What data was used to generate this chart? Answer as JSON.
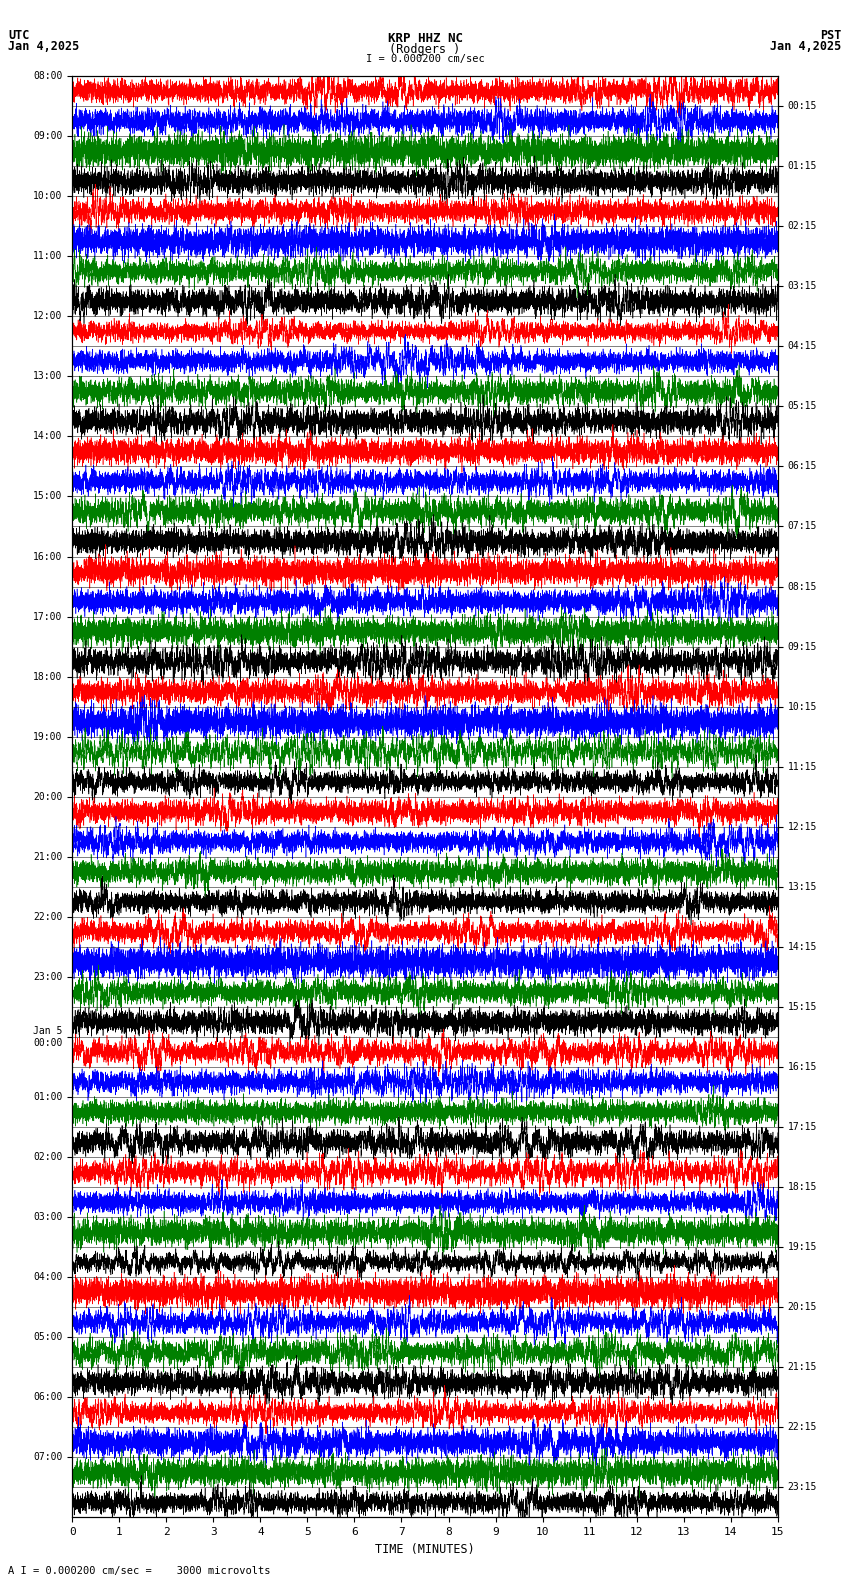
{
  "title_line1": "KRP HHZ NC",
  "title_line2": "(Rodgers )",
  "scale_label": "I = 0.000200 cm/sec",
  "left_timezone": "UTC",
  "right_timezone": "PST",
  "left_date": "Jan 4,2025",
  "right_date": "Jan 4,2025",
  "bottom_label": "A I = 0.000200 cm/sec =    3000 microvolts",
  "xlabel": "TIME (MINUTES)",
  "left_times": [
    "08:00",
    "09:00",
    "10:00",
    "11:00",
    "12:00",
    "13:00",
    "14:00",
    "15:00",
    "16:00",
    "17:00",
    "18:00",
    "19:00",
    "20:00",
    "21:00",
    "22:00",
    "23:00",
    "Jan 5\n00:00",
    "01:00",
    "02:00",
    "03:00",
    "04:00",
    "05:00",
    "06:00",
    "07:00"
  ],
  "right_times": [
    "00:15",
    "01:15",
    "02:15",
    "03:15",
    "04:15",
    "05:15",
    "06:15",
    "07:15",
    "08:15",
    "09:15",
    "10:15",
    "11:15",
    "12:15",
    "13:15",
    "14:15",
    "15:15",
    "16:15",
    "17:15",
    "18:15",
    "19:15",
    "20:15",
    "21:15",
    "22:15",
    "23:15"
  ],
  "num_traces": 48,
  "total_minutes": 15,
  "trace_colors_pattern": [
    "red",
    "blue",
    "green",
    "black"
  ],
  "background_color": "white",
  "fig_width": 8.5,
  "fig_height": 15.84,
  "dpi": 100
}
